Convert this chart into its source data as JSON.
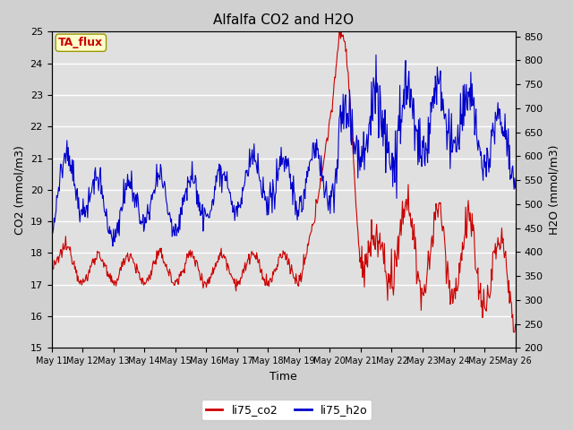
{
  "title": "Alfalfa CO2 and H2O",
  "xlabel": "Time",
  "ylabel_left": "CO2 (mmol/m3)",
  "ylabel_right": "H2O (mmol/m3)",
  "ylim_left": [
    15.0,
    25.0
  ],
  "ylim_right": [
    200,
    860
  ],
  "annotation_text": "TA_flux",
  "annotation_color": "#cc0000",
  "annotation_bg": "#ffffcc",
  "annotation_border": "#999900",
  "line_co2_color": "#cc0000",
  "line_h2o_color": "#0000cc",
  "fig_bg_color": "#d0d0d0",
  "plot_bg_color": "#e0e0e0",
  "legend_co2": "li75_co2",
  "legend_h2o": "li75_h2o",
  "right_yticks": [
    200,
    250,
    300,
    350,
    400,
    450,
    500,
    550,
    600,
    650,
    700,
    750,
    800,
    850
  ],
  "left_yticks": [
    15.0,
    16.0,
    17.0,
    18.0,
    19.0,
    20.0,
    21.0,
    22.0,
    23.0,
    24.0,
    25.0
  ],
  "x_tick_labels": [
    "May 11",
    "May 12",
    "May 13",
    "May 14",
    "May 15",
    "May 16",
    "May 17",
    "May 18",
    "May 19",
    "May 20",
    "May 21",
    "May 22",
    "May 23",
    "May 24",
    "May 25",
    "May 26"
  ]
}
